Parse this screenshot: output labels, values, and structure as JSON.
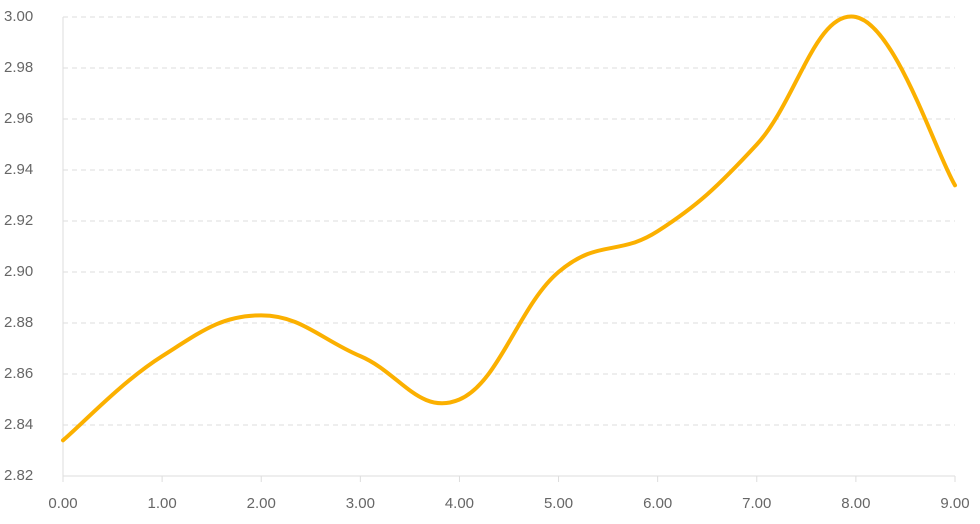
{
  "chart_data": {
    "type": "line",
    "x": [
      0,
      1,
      2,
      3,
      4,
      5,
      6,
      7,
      8,
      9
    ],
    "series": [
      {
        "color": "#fbb000",
        "values": [
          2.834,
          2.867,
          2.883,
          2.867,
          2.85,
          2.9,
          2.916,
          2.95,
          3.0,
          2.934
        ]
      }
    ],
    "xlim": [
      0,
      9
    ],
    "xticks": [
      {
        "value": 0,
        "label": "0.00"
      },
      {
        "value": 1,
        "label": "1.00"
      },
      {
        "value": 2,
        "label": "2.00"
      },
      {
        "value": 3,
        "label": "3.00"
      },
      {
        "value": 4,
        "label": "4.00"
      },
      {
        "value": 5,
        "label": "5.00"
      },
      {
        "value": 6,
        "label": "6.00"
      },
      {
        "value": 7,
        "label": "7.00"
      },
      {
        "value": 8,
        "label": "8.00"
      },
      {
        "value": 9,
        "label": "9.00"
      }
    ],
    "ylim": [
      2.82,
      3.0
    ],
    "yticks": [
      2.82,
      2.84,
      2.86,
      2.88,
      {
        "value": 2.9,
        "label": "2.90"
      },
      2.92,
      2.94,
      2.96,
      2.98,
      {
        "value": 3.0,
        "label": "3.00"
      }
    ],
    "grid": true
  }
}
